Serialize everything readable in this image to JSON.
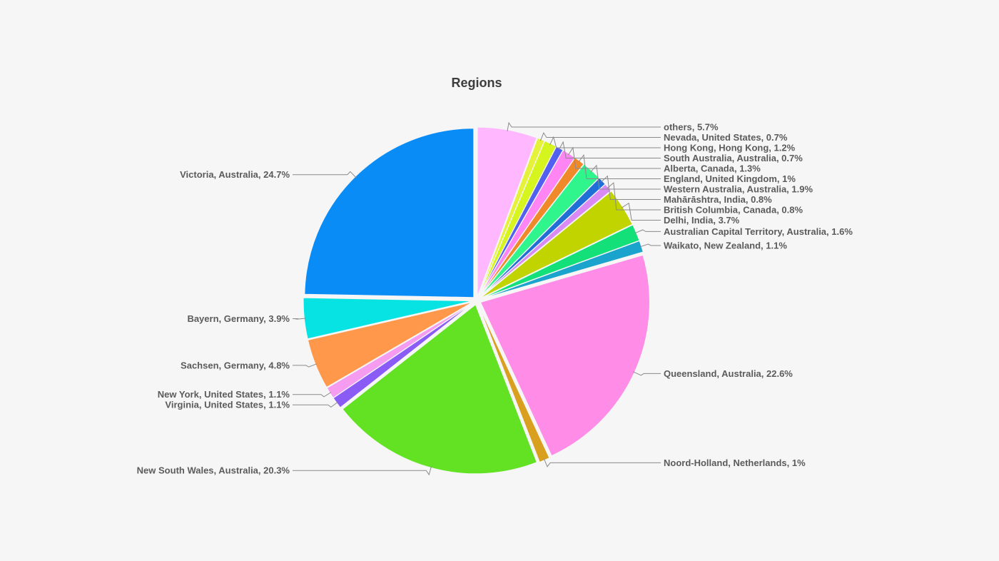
{
  "chart_data": {
    "type": "pie",
    "title": "Regions",
    "legend": "none",
    "slices": [
      {
        "label": "others, 5.7%",
        "name": "others",
        "value": 5.7,
        "color": "#ffb8ff"
      },
      {
        "label": "Nevada, United States, 0.7%",
        "name": "Nevada, United States",
        "value": 0.7,
        "color": "#e6f23a"
      },
      {
        "label": "Hong Kong, Hong Kong, 1.2%",
        "name": "Hong Kong, Hong Kong",
        "value": 1.2,
        "color": "#d6f51f"
      },
      {
        "label": "South Australia, Australia, 0.7%",
        "name": "South Australia, Australia",
        "value": 0.7,
        "color": "#5260f0"
      },
      {
        "label": "Alberta, Canada, 1.3%",
        "name": "Alberta, Canada",
        "value": 1.3,
        "color": "#ff85f4"
      },
      {
        "label": "England, United Kingdom, 1%",
        "name": "England, United Kingdom",
        "value": 1.0,
        "color": "#f0892a"
      },
      {
        "label": "Western Australia, Australia, 1.9%",
        "name": "Western Australia, Australia",
        "value": 1.9,
        "color": "#2ff58c"
      },
      {
        "label": "Mahārāshtra, India, 0.8%",
        "name": "Mahārāshtra, India",
        "value": 0.8,
        "color": "#1f6fd6"
      },
      {
        "label": "British Columbia, Canada, 0.8%",
        "name": "British Columbia, Canada",
        "value": 0.8,
        "color": "#d98af5"
      },
      {
        "label": "Delhi, India, 3.7%",
        "name": "Delhi, India",
        "value": 3.7,
        "color": "#c2d400"
      },
      {
        "label": "Australian Capital Territory, Australia, 1.6%",
        "name": "Australian Capital Territory, Australia",
        "value": 1.6,
        "color": "#14e07a"
      },
      {
        "label": "Waikato, New Zealand, 1.1%",
        "name": "Waikato, New Zealand",
        "value": 1.1,
        "color": "#1aa3cc"
      },
      {
        "label": "Queensland, Australia, 22.6%",
        "name": "Queensland, Australia",
        "value": 22.6,
        "color": "#ff8ce6"
      },
      {
        "label": "Noord-Holland, Netherlands, 1%",
        "name": "Noord-Holland, Netherlands",
        "value": 1.0,
        "color": "#d9a020"
      },
      {
        "label": "New South Wales, Australia, 20.3%",
        "name": "New South Wales, Australia",
        "value": 20.3,
        "color": "#62e222"
      },
      {
        "label": "Virginia, United States, 1.1%",
        "name": "Virginia, United States",
        "value": 1.1,
        "color": "#8a5cf5"
      },
      {
        "label": "New York, United States, 1.1%",
        "name": "New York, United States",
        "value": 1.1,
        "color": "#f59cf0"
      },
      {
        "label": "Sachsen, Germany, 4.8%",
        "name": "Sachsen, Germany",
        "value": 4.8,
        "color": "#ff984a"
      },
      {
        "label": "Bayern, Germany, 3.9%",
        "name": "Bayern, Germany",
        "value": 3.9,
        "color": "#07e3e3"
      },
      {
        "label": "Victoria, Australia, 24.7%",
        "name": "Victoria, Australia",
        "value": 24.7,
        "color": "#0a8cf7"
      }
    ]
  }
}
